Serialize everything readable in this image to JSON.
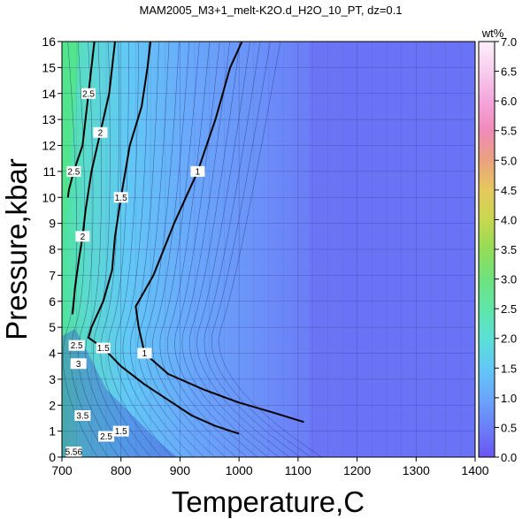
{
  "chart_data": {
    "type": "heatmap",
    "title": "MAM2005_M3+1_melt-K2O.d_H2O_10_PT, dz=0.1",
    "xlabel": "Temperature,C",
    "ylabel": "Pressure,kbar",
    "xlim": [
      700,
      1400
    ],
    "ylim": [
      0,
      16
    ],
    "x_ticks": [
      700,
      800,
      900,
      1000,
      1100,
      1200,
      1300,
      1400
    ],
    "y_ticks": [
      0,
      1,
      2,
      3,
      4,
      5,
      6,
      7,
      8,
      9,
      10,
      11,
      12,
      13,
      14,
      15,
      16
    ],
    "grid": true,
    "colorbar": {
      "unit": "wt%",
      "range": [
        0.0,
        7.0
      ],
      "ticks": [
        0.0,
        0.5,
        1.0,
        1.5,
        2.0,
        2.5,
        3.0,
        3.5,
        4.0,
        4.5,
        5.0,
        5.5,
        6.0,
        6.5,
        7.0
      ],
      "tick_labels": [
        "0.0",
        "0.5",
        "1.0",
        "1.5",
        "2.0",
        "2.5",
        "3.0",
        "3.5",
        "4.0",
        "4.5",
        "5.0",
        "5.5",
        "6.0",
        "6.5",
        "7.0"
      ],
      "colors": [
        "#6a55f2",
        "#6b7ff7",
        "#6aa6fb",
        "#62c8f5",
        "#5be0d6",
        "#5ee6a8",
        "#6ee27d",
        "#93dc57",
        "#c8d74e",
        "#e6c85e",
        "#eaa27e",
        "#f08ab8",
        "#f4a6dc",
        "#f8cdee",
        "#fdf0fa"
      ]
    },
    "major_contours": [
      {
        "value": 1,
        "label": "1",
        "points": [
          [
            1005,
            16
          ],
          [
            985,
            15
          ],
          [
            960,
            13
          ],
          [
            930,
            11
          ],
          [
            890,
            9
          ],
          [
            855,
            7
          ],
          [
            825,
            5.8
          ],
          [
            830,
            5
          ],
          [
            840,
            4
          ],
          [
            880,
            3.2
          ],
          [
            940,
            2.6
          ],
          [
            1000,
            2.1
          ],
          [
            1060,
            1.7
          ],
          [
            1110,
            1.35
          ]
        ]
      },
      {
        "value": 1.5,
        "label": "1.5",
        "points": [
          [
            850,
            16
          ],
          [
            845,
            15
          ],
          [
            835,
            13.5
          ],
          [
            815,
            12
          ],
          [
            800,
            10
          ],
          [
            790,
            8.5
          ],
          [
            785,
            7.2
          ],
          [
            770,
            6
          ],
          [
            750,
            5
          ],
          [
            745,
            4.6
          ],
          [
            770,
            4.2
          ],
          [
            800,
            3.5
          ],
          [
            840,
            2.8
          ],
          [
            880,
            2.2
          ],
          [
            920,
            1.6
          ],
          [
            960,
            1.2
          ],
          [
            1000,
            0.9
          ]
        ]
      },
      {
        "value": 2,
        "label": "2",
        "points": [
          [
            790,
            16
          ],
          [
            780,
            14
          ],
          [
            765,
            12.5
          ],
          [
            750,
            11
          ],
          [
            740,
            9.5
          ],
          [
            735,
            8.5
          ],
          [
            728,
            7.5
          ],
          [
            722,
            6.5
          ],
          [
            718,
            5.5
          ]
        ]
      },
      {
        "value": 2.5,
        "label": "2.5",
        "points": [
          [
            755,
            16
          ],
          [
            745,
            14
          ],
          [
            735,
            12
          ],
          [
            720,
            11
          ],
          [
            712,
            10.3
          ],
          [
            710,
            10
          ]
        ]
      }
    ],
    "contour_labels_near_origin": [
      "2.5",
      "3",
      "3.5",
      "5.56",
      "2.5",
      "1.5"
    ]
  }
}
